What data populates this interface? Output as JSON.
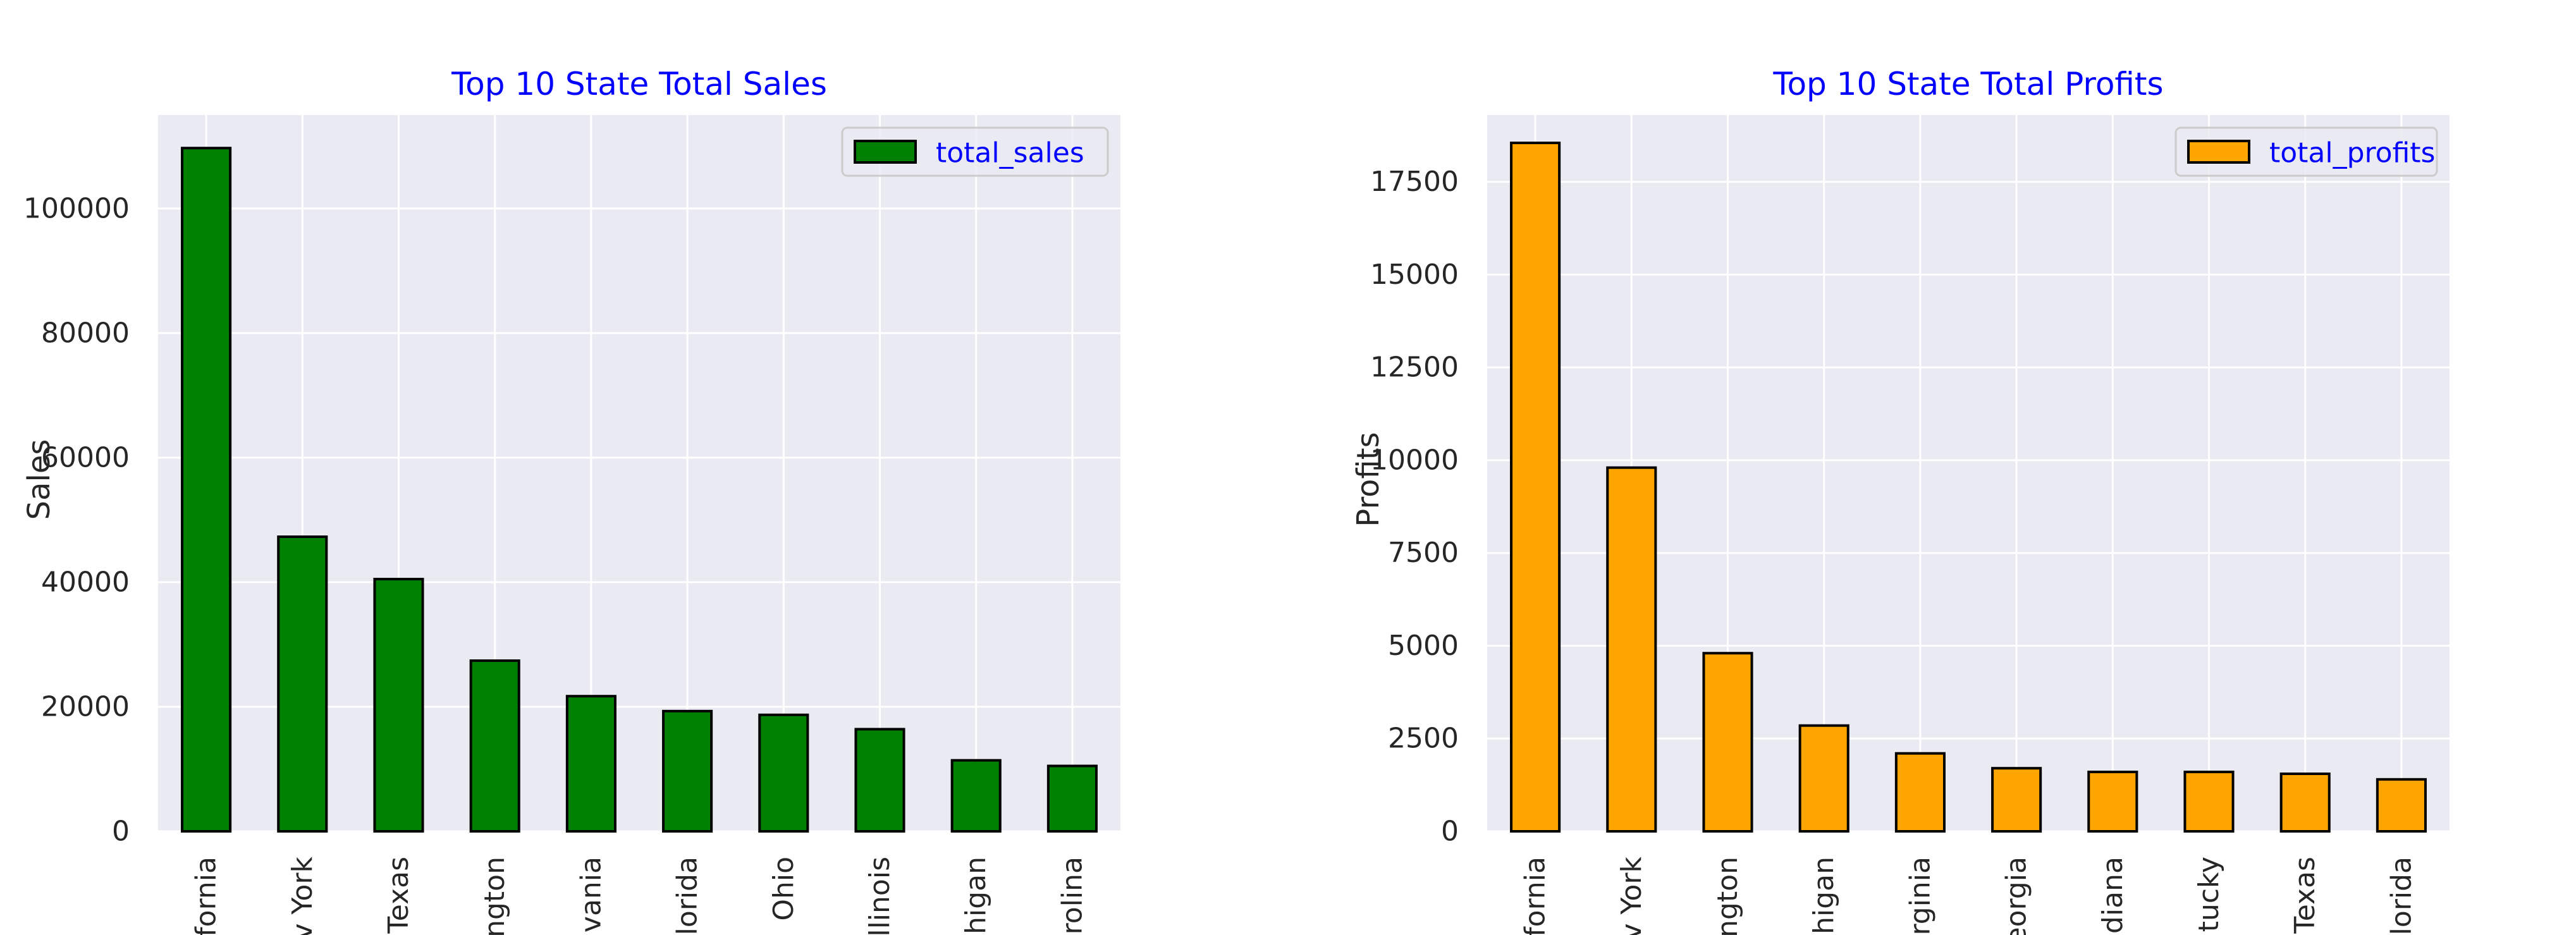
{
  "colors": {
    "background": "#ffffff",
    "axes_bg": "#eaeaf2",
    "grid": "#ffffff",
    "text": "#262626",
    "title": "#0000ff",
    "bar_edge": "#000000"
  },
  "chart_data": [
    {
      "type": "bar",
      "title": "Top 10 State Total Sales",
      "xlabel": "",
      "ylabel": "Sales",
      "ylim": [
        0,
        115000
      ],
      "yticks": [
        0,
        20000,
        40000,
        60000,
        80000,
        100000
      ],
      "ytick_labels": [
        "0",
        "20000",
        "40000",
        "60000",
        "80000",
        "100000"
      ],
      "categories": [
        "California",
        "New York",
        "Texas",
        "Washington",
        "Pennsylvania",
        "Florida",
        "Ohio",
        "Illinois",
        "Michigan",
        "North Carolina"
      ],
      "tick_labels": [
        "fornia",
        "v York",
        "Texas",
        "ngton",
        "vania",
        "lorida",
        "Ohio",
        "llinois",
        "higan",
        "rolina"
      ],
      "series": [
        {
          "name": "total_sales",
          "color": "#008000",
          "values": [
            109700,
            47300,
            40500,
            27400,
            21700,
            19300,
            18700,
            16400,
            11400,
            10500
          ]
        }
      ],
      "legend": "top-right",
      "grid": true
    },
    {
      "type": "bar",
      "title": "Top 10 State Total Profits",
      "xlabel": "",
      "ylabel": "Profits",
      "ylim": [
        0,
        19300
      ],
      "yticks": [
        0,
        2500,
        5000,
        7500,
        10000,
        12500,
        15000,
        17500
      ],
      "ytick_labels": [
        "0",
        "2500",
        "5000",
        "7500",
        "10000",
        "12500",
        "15000",
        "17500"
      ],
      "categories": [
        "California",
        "New York",
        "Washington",
        "Michigan",
        "Virginia",
        "Georgia",
        "Indiana",
        "Kentucky",
        "Texas",
        "Florida"
      ],
      "tick_labels": [
        "fornia",
        "v York",
        "ngton",
        "higan",
        "rginia",
        "eorgia",
        "diana",
        "tucky",
        "Texas",
        "lorida"
      ],
      "series": [
        {
          "name": "total_profits",
          "color": "#ffa500",
          "values": [
            18550,
            9800,
            4800,
            2850,
            2100,
            1700,
            1600,
            1600,
            1550,
            1400
          ]
        }
      ],
      "legend": "top-right",
      "grid": true
    }
  ]
}
